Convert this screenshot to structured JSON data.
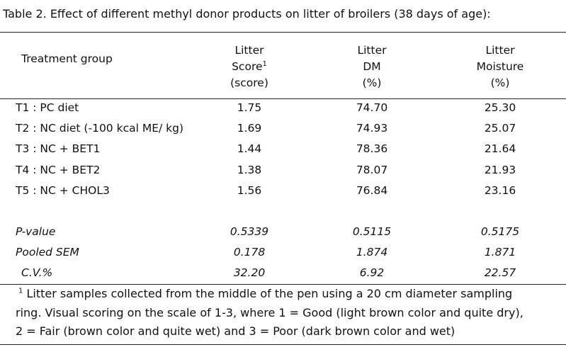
{
  "title": "Table 2. Effect of different methyl donor products on litter of broilers (38 days of age):",
  "header": {
    "treatment": "Treatment group",
    "col1": [
      "Litter",
      "Score",
      "(score)"
    ],
    "col1_sup": "1",
    "col2": [
      "Litter",
      "DM",
      "(%)"
    ],
    "col3": [
      "Litter",
      "Moisture",
      "(%)"
    ]
  },
  "rows": [
    {
      "group": "T1 : PC diet",
      "score": "1.75",
      "dm": "74.70",
      "moisture": "25.30"
    },
    {
      "group": "T2 : NC diet (-100 kcal ME/ kg)",
      "score": "1.69",
      "dm": "74.93",
      "moisture": "25.07"
    },
    {
      "group": "T3 : NC + BET1",
      "score": "1.44",
      "dm": "78.36",
      "moisture": "21.64"
    },
    {
      "group": "T4 : NC + BET2",
      "score": "1.38",
      "dm": "78.07",
      "moisture": "21.93"
    },
    {
      "group": "T5 : NC + CHOL3",
      "score": "1.56",
      "dm": "76.84",
      "moisture": "23.16"
    }
  ],
  "stats": [
    {
      "label": "P-value",
      "score": "0.5339",
      "dm": "0.5115",
      "moisture": "0.5175"
    },
    {
      "label": "Pooled SEM",
      "score": "0.178",
      "dm": "1.874",
      "moisture": "1.871"
    },
    {
      "label": "C.V.%",
      "score": "32.20",
      "dm": "6.92",
      "moisture": "22.57"
    }
  ],
  "footnote": {
    "marker": "1",
    "lines": [
      "Litter samples collected from the middle of the pen using a 20 cm diameter sampling",
      "ring. Visual scoring on the scale of 1-3, where 1 = Good (light brown color and quite dry),",
      "2 = Fair (brown color and quite wet) and 3 = Poor (dark brown color and wet)"
    ]
  }
}
